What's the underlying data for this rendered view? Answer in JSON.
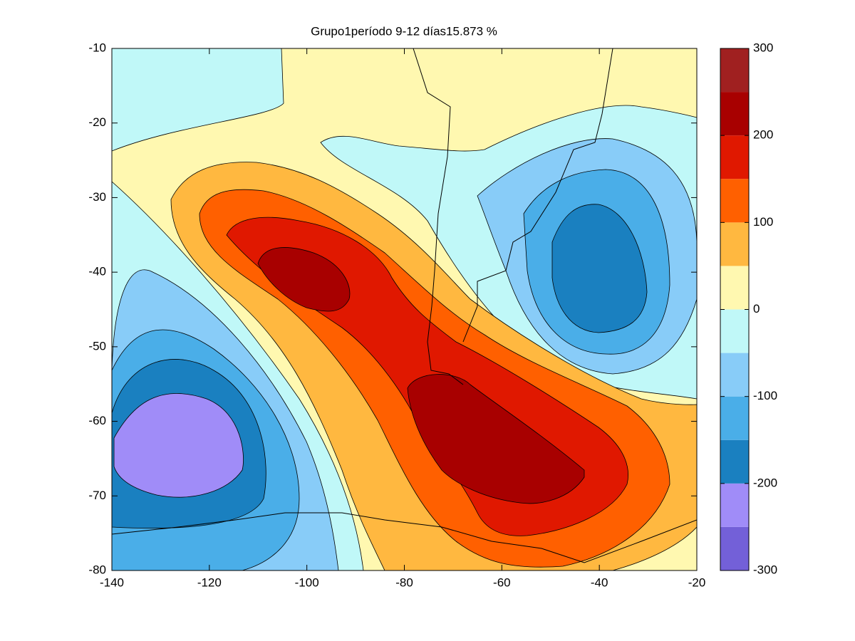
{
  "chart_data": {
    "type": "contour",
    "title": "Grupo1período 9-12 días15.873 %",
    "xlim": [
      -140,
      -20
    ],
    "xticks": [
      -140,
      -120,
      -100,
      -80,
      -60,
      -40,
      -20
    ],
    "ylim": [
      -80,
      -10
    ],
    "yticks": [
      -10,
      -20,
      -30,
      -40,
      -50,
      -60,
      -70,
      -80
    ],
    "colorbar": {
      "lim": [
        -300,
        300
      ],
      "ticks": [
        300,
        200,
        100,
        0,
        -100,
        -200,
        -300
      ],
      "levels": [
        -300,
        -250,
        -200,
        -150,
        -100,
        -50,
        0,
        50,
        100,
        150,
        200,
        250,
        300
      ],
      "colors": [
        "#7360d8",
        "#a08cf8",
        "#1a80c0",
        "#4aaee8",
        "#88ccf8",
        "#c0f8f8",
        "#fff8b0",
        "#ffb840",
        "#ff6000",
        "#e01800",
        "#a80000",
        "#a02020"
      ]
    }
  }
}
